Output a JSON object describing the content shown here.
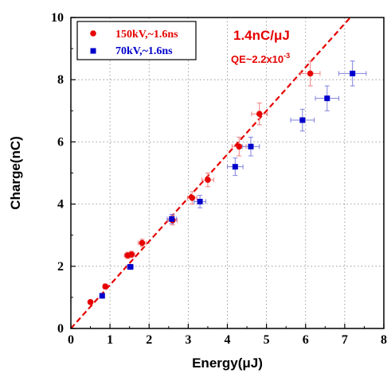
{
  "chart_data": {
    "type": "scatter",
    "xlabel": "Energy(μJ)",
    "ylabel": "Charge(nC)",
    "xlim": [
      0,
      8
    ],
    "ylim": [
      0,
      10
    ],
    "xticks": [
      "0",
      "1",
      "2",
      "3",
      "4",
      "5",
      "6",
      "7",
      "8"
    ],
    "yticks": [
      "0",
      "2",
      "4",
      "6",
      "8",
      "10"
    ],
    "grid": "dotted",
    "legend_position": "top-left",
    "annotations": {
      "slope": "1.4nC/μJ",
      "qe_prefix": "QE~2.2x10",
      "qe_exponent": "-3"
    },
    "fit_line": {
      "slope": 1.4,
      "intercept": 0,
      "color": "#e60000",
      "style": "dashed"
    },
    "series": [
      {
        "name": "150kV,~1.6ns",
        "marker": "circle",
        "color": "#e60000",
        "x": [
          0.5,
          0.88,
          1.45,
          1.55,
          1.82,
          2.6,
          3.1,
          3.5,
          4.3,
          4.82,
          6.12
        ],
        "y": [
          0.85,
          1.35,
          2.35,
          2.38,
          2.75,
          3.48,
          4.2,
          4.78,
          5.85,
          6.9,
          8.2
        ],
        "xerr": [
          0.05,
          0.05,
          0.08,
          0.08,
          0.1,
          0.12,
          0.12,
          0.15,
          0.18,
          0.2,
          0.25
        ],
        "yerr": [
          0.05,
          0.08,
          0.1,
          0.1,
          0.12,
          0.15,
          0.2,
          0.22,
          0.3,
          0.35,
          0.4
        ]
      },
      {
        "name": "70kV,~1.6ns",
        "marker": "square",
        "color": "#0000cc",
        "x": [
          0.8,
          1.52,
          2.58,
          3.3,
          4.2,
          4.6,
          5.92,
          6.55,
          7.2
        ],
        "y": [
          1.05,
          1.98,
          3.52,
          4.08,
          5.2,
          5.85,
          6.7,
          7.4,
          8.2
        ],
        "xerr": [
          0.05,
          0.08,
          0.12,
          0.15,
          0.2,
          0.22,
          0.3,
          0.3,
          0.35
        ],
        "yerr": [
          0.05,
          0.08,
          0.15,
          0.2,
          0.28,
          0.3,
          0.35,
          0.4,
          0.4
        ]
      }
    ]
  }
}
